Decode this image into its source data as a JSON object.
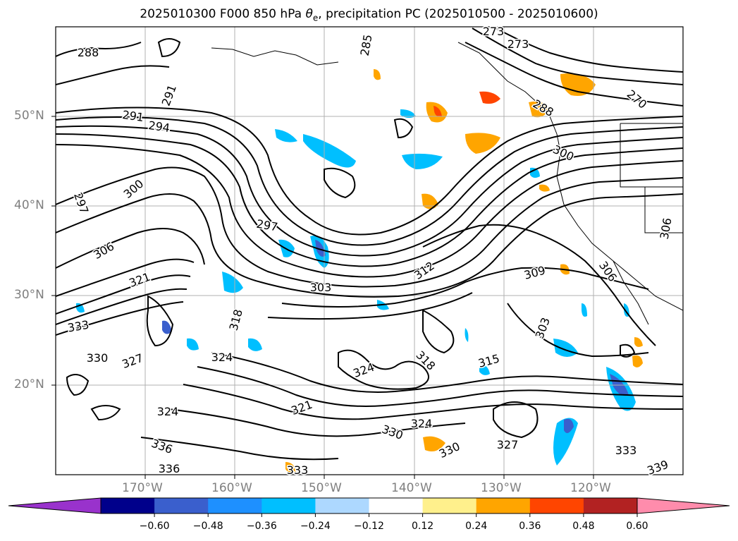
{
  "title": {
    "prefix": "2025010300 F000 850 hPa ",
    "symbol": "θ",
    "subscript": "e",
    "suffix": ", precipitation PC (2025010500 - 2025010600)"
  },
  "axes": {
    "lat_labels": [
      "50°N",
      "40°N",
      "30°N",
      "20°N"
    ],
    "lat_values": [
      50,
      40,
      30,
      20
    ],
    "lon_labels": [
      "170°W",
      "160°W",
      "150°W",
      "140°W",
      "130°W",
      "120°W"
    ],
    "lon_values": [
      -170,
      -160,
      -150,
      -140,
      -130,
      -120
    ],
    "lon_range": [
      -180,
      -110
    ],
    "lat_range": [
      10,
      60
    ]
  },
  "colorbar": {
    "tick_labels": [
      "−0.60",
      "−0.48",
      "−0.36",
      "−0.24",
      "−0.12",
      "0.12",
      "0.24",
      "0.36",
      "0.48",
      "0.60"
    ],
    "colors": [
      "#9932cc",
      "#00008b",
      "#3a5fcd",
      "#1e90ff",
      "#00bfff",
      "#add8ff",
      "#ffffff",
      "#fff08c",
      "#ffa500",
      "#ff4500",
      "#b22222",
      "#ff8cac"
    ],
    "under_color": "#9932cc",
    "over_color": "#ff8cac"
  },
  "contour_labels": [
    {
      "text": "288"
    },
    {
      "text": "291"
    },
    {
      "text": "294"
    },
    {
      "text": "297"
    },
    {
      "text": "300"
    },
    {
      "text": "306"
    },
    {
      "text": "321"
    },
    {
      "text": "333"
    },
    {
      "text": "330"
    },
    {
      "text": "327"
    },
    {
      "text": "324"
    },
    {
      "text": "318"
    },
    {
      "text": "297"
    },
    {
      "text": "303"
    },
    {
      "text": "312"
    },
    {
      "text": "324"
    },
    {
      "text": "321"
    },
    {
      "text": "330"
    },
    {
      "text": "333"
    },
    {
      "text": "336"
    },
    {
      "text": "273"
    },
    {
      "text": "273"
    },
    {
      "text": "270"
    },
    {
      "text": "288"
    },
    {
      "text": "300"
    },
    {
      "text": "309"
    },
    {
      "text": "303"
    },
    {
      "text": "306"
    },
    {
      "text": "315"
    },
    {
      "text": "318"
    },
    {
      "text": "324"
    },
    {
      "text": "327"
    },
    {
      "text": "330"
    },
    {
      "text": "333"
    },
    {
      "text": "336"
    },
    {
      "text": "339"
    },
    {
      "text": "324"
    },
    {
      "text": "306"
    },
    {
      "text": "285"
    },
    {
      "text": "291"
    }
  ]
}
